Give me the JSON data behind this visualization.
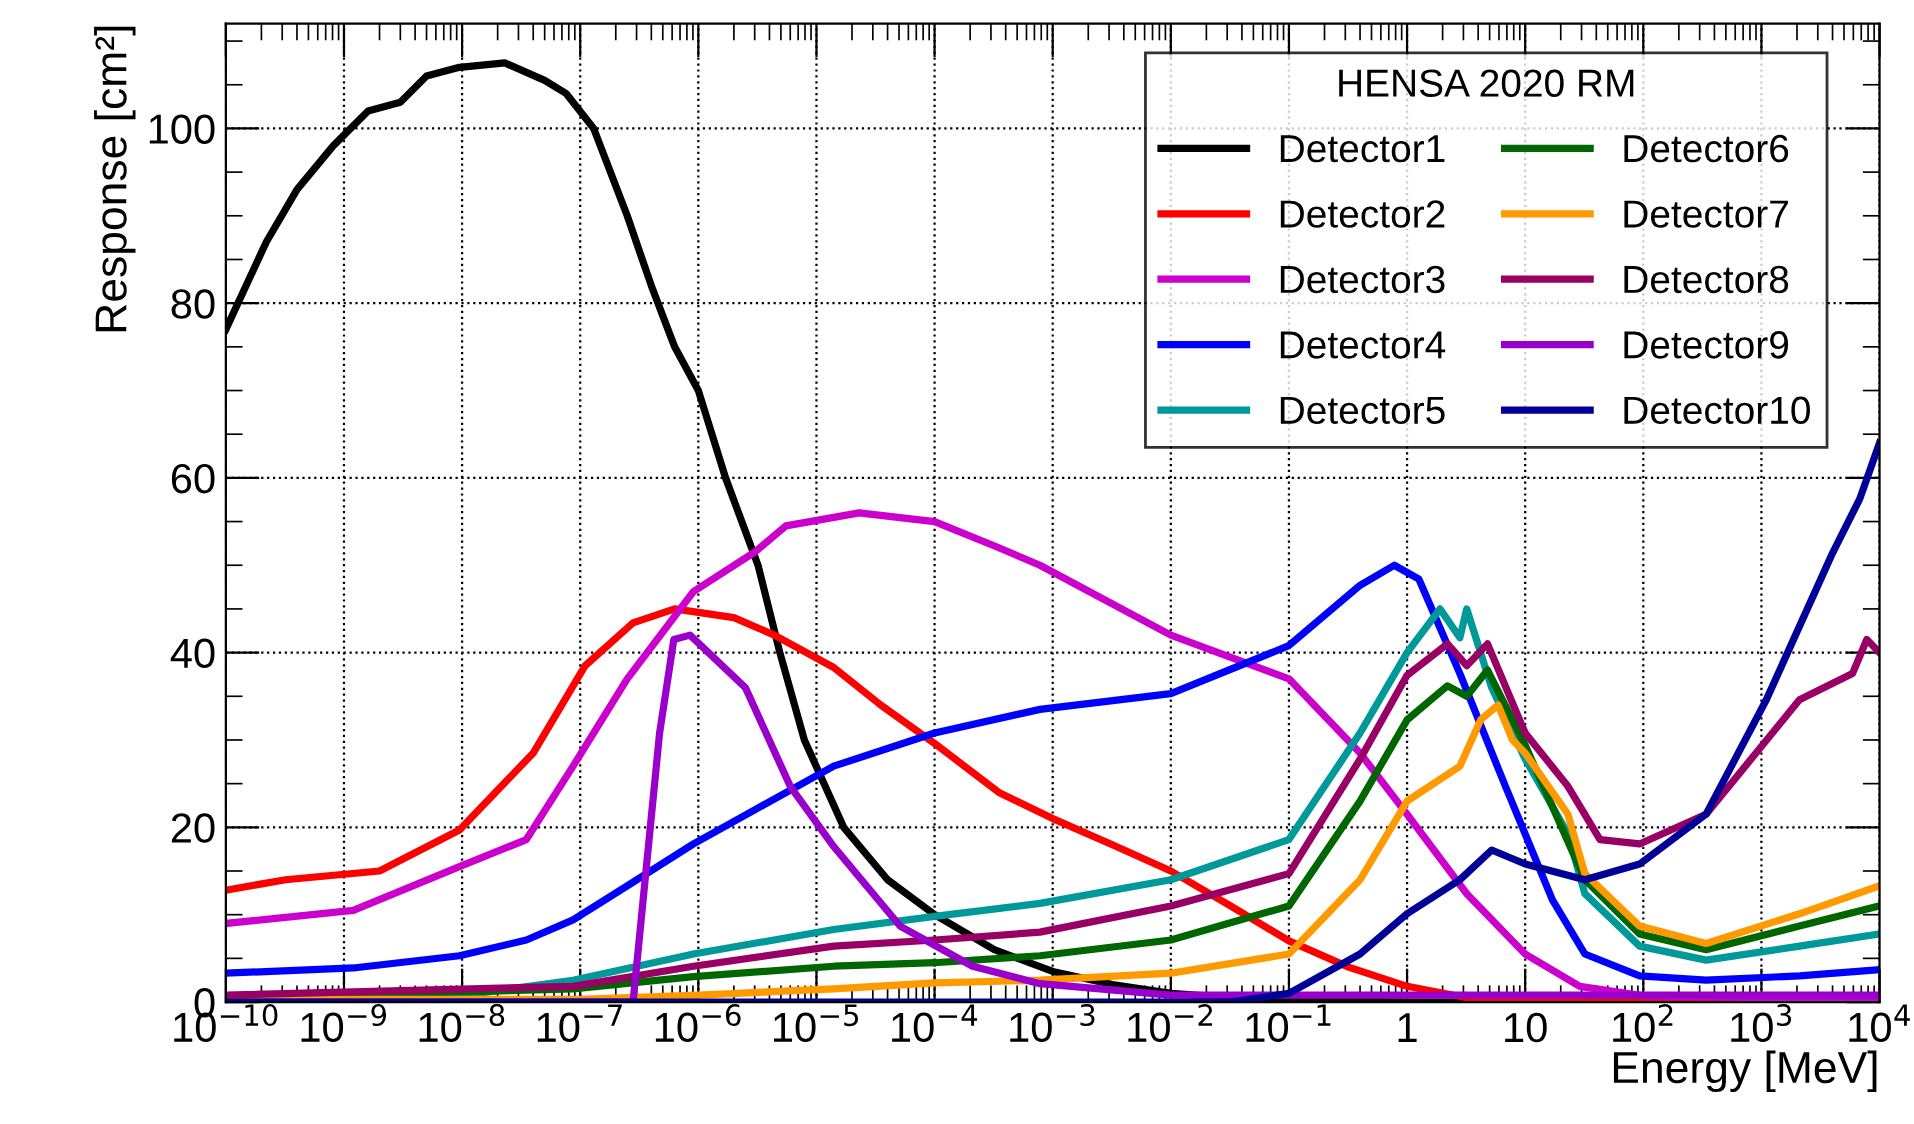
{
  "chart_data": {
    "type": "line",
    "legend_title": "HENSA 2020 RM",
    "xlabel": "Energy [MeV]",
    "ylabel": "Response [cm²]",
    "log": "x",
    "grid": true,
    "legend": "top right",
    "line_style": "solid",
    "marker": "none",
    "xlim": [
      1e-10,
      10000
    ],
    "ylim": [
      0,
      112
    ],
    "xticks": [
      {
        "value": 1e-10,
        "label": "10$^{−10}$"
      },
      {
        "value": 1e-09,
        "label": "10$^{−9}$"
      },
      {
        "value": 1e-08,
        "label": "10$^{−8}$"
      },
      {
        "value": 1e-07,
        "label": "10$^{−7}$"
      },
      {
        "value": 1e-06,
        "label": "10$^{−6}$"
      },
      {
        "value": 1e-05,
        "label": "10$^{−5}$"
      },
      {
        "value": 0.0001,
        "label": "10$^{−4}$"
      },
      {
        "value": 0.001,
        "label": "10$^{−3}$"
      },
      {
        "value": 0.01,
        "label": "10$^{−2}$"
      },
      {
        "value": 0.1,
        "label": "10$^{−1}$"
      },
      1,
      10,
      {
        "value": 100,
        "label": "10$^{2}$"
      },
      {
        "value": 1000,
        "label": "10$^{3}$"
      },
      {
        "value": 10000,
        "label": "10$^{4}$"
      }
    ],
    "yticks": [
      0,
      20,
      40,
      60,
      80,
      100
    ],
    "series": [
      {
        "name": "Detector1",
        "color": "#000000",
        "x": [
          1e-10,
          2.2e-10,
          4e-10,
          8.1e-10,
          1.6e-09,
          3e-09,
          5e-09,
          9.5e-09,
          2.3e-08,
          5e-08,
          7.6e-08,
          1.3e-07,
          2.5e-07,
          4e-07,
          6.3e-07,
          1e-06,
          1.7e-06,
          3.2e-06,
          4.9e-06,
          7.9e-06,
          1.7e-05,
          4e-05,
          0.0001,
          0.00032,
          0.001,
          0.0032,
          0.01,
          0.032,
          0.1,
          1,
          10000
        ],
        "values": [
          77,
          87,
          93,
          98,
          102,
          103,
          106,
          107,
          107.5,
          105.5,
          104,
          100,
          90,
          82,
          75,
          70,
          60,
          50,
          40,
          30,
          20,
          14,
          10,
          6,
          3.5,
          2,
          1,
          0.5,
          0.2,
          0,
          0
        ]
      },
      {
        "name": "Detector2",
        "color": "#ff0000",
        "x": [
          1e-10,
          3.2e-10,
          2e-09,
          9.5e-09,
          4e-08,
          1.1e-07,
          2.8e-07,
          6.3e-07,
          2e-06,
          4.4e-06,
          1.4e-05,
          3.5e-05,
          0.0001,
          0.00035,
          0.001,
          0.0032,
          0.01,
          0.032,
          0.1,
          0.32,
          1,
          3.2,
          10,
          100,
          10000
        ],
        "values": [
          12.8,
          14,
          15,
          19.7,
          28.5,
          38.5,
          43.4,
          45,
          44,
          42,
          38.3,
          34,
          29.6,
          24,
          21,
          18,
          15,
          11,
          7,
          4,
          1.8,
          0.5,
          0.1,
          0,
          0
        ]
      },
      {
        "name": "Detector3",
        "color": "#cc00cc",
        "x": [
          1e-10,
          1.2e-09,
          9.5e-09,
          3.5e-08,
          8.7e-08,
          2.5e-07,
          9.1e-07,
          3e-06,
          5.5e-06,
          2.3e-05,
          0.0001,
          0.00035,
          0.00078,
          0.01,
          0.1,
          0.4,
          1,
          3.2,
          10,
          29,
          100,
          1000,
          10000
        ],
        "values": [
          9,
          10.5,
          15.5,
          18.6,
          27,
          37,
          47,
          51.5,
          54.5,
          56,
          55,
          52,
          50,
          42,
          37,
          28.5,
          21.5,
          12.4,
          5.5,
          1.8,
          0.7,
          0.5,
          0.5
        ]
      },
      {
        "name": "Detector4",
        "color": "#0000ff",
        "x": [
          1e-10,
          1.2e-09,
          9.5e-09,
          3.5e-08,
          8.7e-08,
          2.5e-07,
          9.1e-07,
          3e-06,
          1.4e-05,
          0.0001,
          0.00078,
          0.01,
          0.1,
          0.4,
          0.78,
          1.26,
          2.8,
          6.8,
          17,
          32,
          93,
          340,
          2100,
          10000
        ],
        "values": [
          3.3,
          3.9,
          5.3,
          7.1,
          9.4,
          13.3,
          18.1,
          22,
          27,
          30.8,
          33.5,
          35.3,
          40.8,
          47.7,
          50,
          48.4,
          37.6,
          24.7,
          11.7,
          5.5,
          3,
          2.5,
          3,
          3.7
        ]
      },
      {
        "name": "Detector5",
        "color": "#009999",
        "x": [
          1e-10,
          9.5e-09,
          8.7e-08,
          9.1e-07,
          1.4e-05,
          0.0001,
          0.00078,
          0.01,
          0.1,
          0.4,
          1,
          1.9,
          2.8,
          3.2,
          5.2,
          10,
          23,
          32,
          93,
          340,
          2100,
          10000
        ],
        "values": [
          0.7,
          0.7,
          2.5,
          5.5,
          8.3,
          9.8,
          11.3,
          14,
          18.6,
          30.8,
          40,
          45,
          41.7,
          45,
          36,
          27.8,
          19.3,
          12.4,
          6.4,
          4.8,
          6.4,
          7.8
        ]
      },
      {
        "name": "Detector6",
        "color": "#006600",
        "x": [
          1e-10,
          8.7e-08,
          9.1e-07,
          1.4e-05,
          0.0001,
          0.00078,
          0.01,
          0.1,
          0.4,
          1,
          2.2,
          3.2,
          4.8,
          10,
          32,
          93,
          340,
          2100,
          10000
        ],
        "values": [
          0.5,
          1.5,
          2.9,
          4.1,
          4.5,
          5.3,
          7.1,
          11,
          23,
          32.3,
          36.2,
          35,
          38,
          29.4,
          14,
          7.8,
          6,
          8.7,
          11
        ]
      },
      {
        "name": "Detector7",
        "color": "#ff9900",
        "x": [
          1e-10,
          1e-07,
          1e-06,
          1.4e-05,
          0.0001,
          0.00078,
          0.01,
          0.1,
          0.4,
          1,
          2.8,
          4.2,
          5.9,
          7.8,
          10,
          23,
          32,
          93,
          340,
          2100,
          10000
        ],
        "values": [
          0.3,
          0.3,
          0.8,
          1.5,
          2.2,
          2.5,
          3.3,
          5.5,
          14,
          23,
          27,
          32.3,
          34,
          30,
          28.5,
          21.5,
          14.7,
          8.7,
          6.7,
          10.1,
          13.3
        ]
      },
      {
        "name": "Detector8",
        "color": "#990066",
        "x": [
          1e-10,
          8.7e-08,
          9.1e-07,
          1.4e-05,
          0.0001,
          0.00078,
          0.01,
          0.1,
          0.4,
          1,
          2.2,
          3.2,
          4.8,
          10,
          23,
          43,
          93,
          340,
          2100,
          5900,
          7800,
          10000
        ],
        "values": [
          0.8,
          1.8,
          4.1,
          6.4,
          7.1,
          8,
          11,
          14.7,
          27.8,
          37.4,
          41,
          38.5,
          41,
          30.8,
          24.7,
          18.6,
          18.1,
          21.5,
          34.6,
          37.6,
          41.5,
          40
        ]
      },
      {
        "name": "Detector9",
        "color": "#9900cc",
        "x": [
          1e-10,
          2.8e-07,
          4.7e-07,
          6.2e-07,
          8.5e-07,
          2.5e-06,
          6e-06,
          1.4e-05,
          5.1e-05,
          0.00021,
          0.00078,
          0.01,
          10000
        ],
        "values": [
          0,
          0,
          30.8,
          41.5,
          42,
          36,
          24.7,
          17.8,
          8.7,
          4.1,
          2.1,
          0.8,
          0.8
        ]
      },
      {
        "name": "Detector10",
        "color": "#000099",
        "x": [
          1e-10,
          0.032,
          0.1,
          0.4,
          1,
          2.8,
          5.2,
          10,
          32,
          93,
          340,
          1100,
          4000,
          6800,
          10000
        ],
        "values": [
          0,
          0,
          1,
          5.5,
          10.1,
          14,
          17.4,
          15.8,
          14,
          15.8,
          21.5,
          34.6,
          51.4,
          57.6,
          64
        ]
      }
    ]
  }
}
